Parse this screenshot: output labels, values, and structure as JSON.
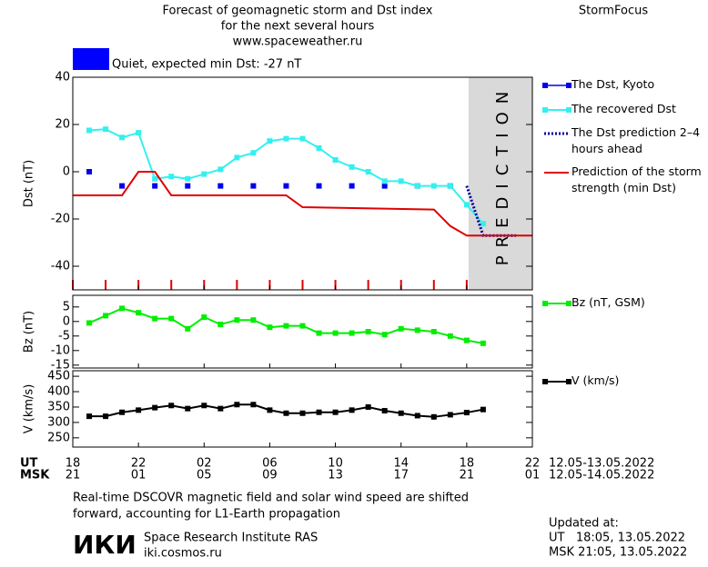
{
  "header": {
    "title_lines": [
      "Forecast of geomagnetic storm and Dst index",
      "for the next several hours",
      "www.spaceweather.ru"
    ],
    "brand": "StormFocus",
    "status_text": "Quiet, expected min Dst: -27 nT",
    "status_color": "#0000ff"
  },
  "time_axis": {
    "ut_label": "UT",
    "msk_label": "MSK",
    "msk_ticks": [
      "21",
      "01",
      "05",
      "09",
      "13",
      "17",
      "21",
      "01"
    ],
    "ut_dates": "12.05-13.05.2022",
    "msk_dates": "12.05-14.05.2022"
  },
  "chart_data": [
    {
      "type": "line",
      "ylabel": "Dst (nT)",
      "xlim": [
        0,
        28
      ],
      "xticks": [
        0,
        4,
        8,
        12,
        16,
        20,
        24,
        28
      ],
      "ylim": [
        -50,
        40
      ],
      "yticks": [
        -40,
        -20,
        0,
        20,
        40
      ],
      "minor_xticks": [
        0,
        2,
        4,
        6,
        8,
        10,
        12,
        14,
        16,
        18,
        20,
        22,
        24
      ],
      "minor_tick_color": "#e00000",
      "prediction_band": {
        "from": 24,
        "to": 28,
        "label": "PREDICTION",
        "color": "#d9d9d9"
      },
      "series": [
        {
          "name": "The Dst, Kyoto",
          "color": "#0000ee",
          "marker": "square",
          "line": "none",
          "x": [
            1,
            3,
            5,
            7,
            9,
            11,
            13,
            15,
            17,
            19,
            21,
            23
          ],
          "values": [
            0,
            -6,
            -6,
            -6,
            -6,
            -6,
            -6,
            -6,
            -6,
            -6,
            -6,
            -6
          ]
        },
        {
          "name": "The recovered Dst",
          "color": "#33f0f0",
          "marker": "square",
          "line": "solid",
          "x": [
            1,
            2,
            3,
            4,
            5,
            6,
            7,
            8,
            9,
            10,
            11,
            12,
            13,
            14,
            15,
            16,
            17,
            18,
            19,
            20,
            21,
            22,
            23,
            24,
            25
          ],
          "values": [
            17.5,
            18,
            14.5,
            16.5,
            -3,
            -2,
            -3,
            -1,
            1,
            6,
            8,
            13,
            14,
            14,
            10,
            5,
            2,
            0,
            -4,
            -4,
            -6,
            -6,
            -6,
            -14,
            -22
          ]
        },
        {
          "name": "The Dst prediction 2–4 hours ahead",
          "color": "#000099",
          "marker": "none",
          "line": "dotted",
          "x": [
            24,
            25,
            27
          ],
          "values": [
            -6,
            -27,
            -27
          ]
        },
        {
          "name": "Prediction of the storm strength (min Dst)",
          "color": "#e00000",
          "marker": "none",
          "line": "solid",
          "x": [
            0,
            3,
            4,
            5,
            6,
            13,
            14,
            22,
            23,
            24,
            28
          ],
          "values": [
            -10,
            -10,
            0,
            0,
            -10,
            -10,
            -15,
            -16,
            -23,
            -27,
            -27
          ]
        }
      ]
    },
    {
      "type": "line",
      "ylabel": "Bz (nT)",
      "xlim": [
        0,
        28
      ],
      "xticks": [
        0,
        4,
        8,
        12,
        16,
        20,
        24,
        28
      ],
      "ylim": [
        -16,
        9
      ],
      "yticks": [
        -15,
        -10,
        -5,
        0,
        5
      ],
      "series": [
        {
          "name": "Bz (nT, GSM)",
          "color": "#00ee00",
          "marker": "square",
          "line": "solid",
          "x": [
            1,
            2,
            3,
            4,
            5,
            6,
            7,
            8,
            9,
            10,
            11,
            12,
            13,
            14,
            15,
            16,
            17,
            18,
            19,
            20,
            21,
            22,
            23,
            24,
            25
          ],
          "values": [
            -0.5,
            2,
            4.5,
            3,
            1,
            1,
            -2.5,
            1.5,
            -1,
            0.5,
            0.5,
            -2,
            -1.5,
            -1.5,
            -4,
            -4,
            -4,
            -3.5,
            -4.5,
            -2.5,
            -3,
            -3.5,
            -5,
            -6.5,
            -7.5
          ]
        }
      ]
    },
    {
      "type": "line",
      "ylabel": "V (km/s)",
      "xlim": [
        0,
        28
      ],
      "xticks": [
        {
          "value": 0,
          "label": "18"
        },
        {
          "value": 4,
          "label": "22"
        },
        {
          "value": 8,
          "label": "02"
        },
        {
          "value": 12,
          "label": "06"
        },
        {
          "value": 16,
          "label": "10"
        },
        {
          "value": 20,
          "label": "14"
        },
        {
          "value": 24,
          "label": "18"
        },
        {
          "value": 28,
          "label": "22"
        }
      ],
      "ylim": [
        220,
        468
      ],
      "yticks": [
        250,
        300,
        350,
        400,
        450
      ],
      "series": [
        {
          "name": "V (km/s)",
          "color": "#000000",
          "marker": "square",
          "line": "solid",
          "x": [
            1,
            2,
            3,
            4,
            5,
            6,
            7,
            8,
            9,
            10,
            11,
            12,
            13,
            14,
            15,
            16,
            17,
            18,
            19,
            20,
            21,
            22,
            23,
            24,
            25
          ],
          "values": [
            320,
            320,
            333,
            340,
            348,
            355,
            345,
            355,
            345,
            358,
            358,
            340,
            330,
            330,
            333,
            333,
            340,
            350,
            338,
            330,
            322,
            318,
            325,
            332,
            342
          ]
        }
      ]
    }
  ],
  "footer": {
    "note_lines": [
      "Real-time DSCOVR magnetic field and solar wind speed are shifted",
      "forward, accounting for L1-Earth propagation"
    ],
    "logo": "ИКИ",
    "institute": "Space Research Institute RAS",
    "site": "iki.cosmos.ru",
    "updated_label": "Updated at:",
    "updated_ut": "UT   18:05, 13.05.2022",
    "updated_msk": "MSK 21:05, 13.05.2022"
  }
}
